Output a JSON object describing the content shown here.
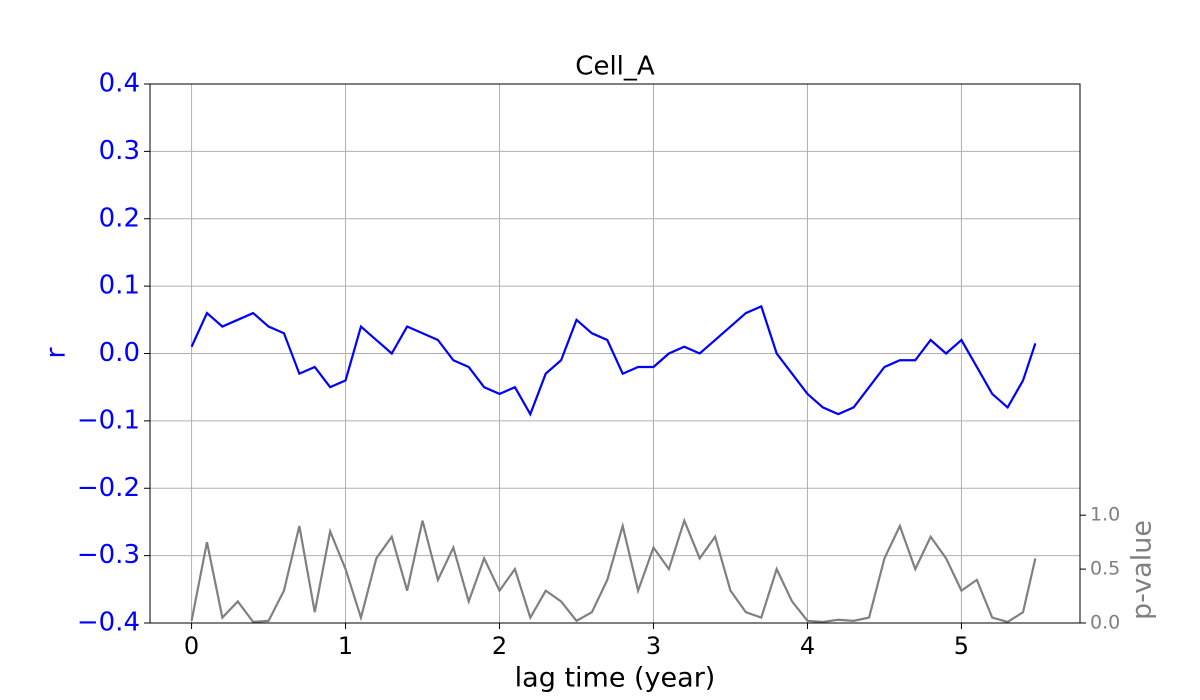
{
  "chart_data": {
    "type": "line",
    "title": "Cell_A",
    "x_label": "lag time (year)",
    "y_label": "r",
    "y2_label": "p-value",
    "x": [
      0,
      0.1,
      0.2,
      0.3,
      0.4,
      0.5,
      0.6,
      0.7,
      0.8,
      0.9,
      1.0,
      1.1,
      1.2,
      1.3,
      1.4,
      1.5,
      1.6,
      1.7,
      1.8,
      1.9,
      2.0,
      2.1,
      2.2,
      2.3,
      2.4,
      2.5,
      2.6,
      2.7,
      2.8,
      2.9,
      3.0,
      3.1,
      3.2,
      3.3,
      3.4,
      3.5,
      3.6,
      3.7,
      3.8,
      3.9,
      4.0,
      4.1,
      4.2,
      4.3,
      4.4,
      4.5,
      4.6,
      4.7,
      4.8,
      4.9,
      5.0,
      5.1,
      5.2,
      5.3,
      5.4,
      5.48
    ],
    "series": [
      {
        "name": "r",
        "color": "#0000ff",
        "axis": "y",
        "values": [
          0.01,
          0.06,
          0.04,
          0.05,
          0.06,
          0.04,
          0.03,
          -0.03,
          -0.02,
          -0.05,
          -0.04,
          0.04,
          0.02,
          0.0,
          0.04,
          0.03,
          0.02,
          -0.01,
          -0.02,
          -0.05,
          -0.06,
          -0.05,
          -0.09,
          -0.03,
          -0.01,
          0.05,
          0.03,
          0.02,
          -0.03,
          -0.02,
          -0.02,
          0.0,
          0.01,
          0.0,
          0.02,
          0.04,
          0.06,
          0.07,
          0.0,
          -0.03,
          -0.06,
          -0.08,
          -0.09,
          -0.08,
          -0.05,
          -0.02,
          -0.01,
          -0.01,
          0.02,
          0.0,
          0.02,
          -0.02,
          -0.06,
          -0.08,
          -0.04,
          0.015
        ]
      },
      {
        "name": "p-value",
        "color": "#808080",
        "axis": "y2",
        "values": [
          0.02,
          0.75,
          0.05,
          0.2,
          0.01,
          0.02,
          0.3,
          0.9,
          0.1,
          0.85,
          0.5,
          0.05,
          0.6,
          0.8,
          0.3,
          0.95,
          0.4,
          0.7,
          0.2,
          0.6,
          0.3,
          0.5,
          0.05,
          0.3,
          0.2,
          0.02,
          0.1,
          0.4,
          0.9,
          0.3,
          0.7,
          0.5,
          0.95,
          0.6,
          0.8,
          0.3,
          0.1,
          0.05,
          0.5,
          0.2,
          0.02,
          0.01,
          0.03,
          0.02,
          0.05,
          0.6,
          0.9,
          0.5,
          0.8,
          0.6,
          0.3,
          0.4,
          0.05,
          0.01,
          0.1,
          0.6
        ]
      }
    ],
    "xlim": [
      -0.27,
      5.77
    ],
    "xticks": [
      0,
      1,
      2,
      3,
      4,
      5
    ],
    "ylim": [
      -0.4,
      0.4
    ],
    "yticks": [
      {
        "value": -0.4,
        "label": "−0.4"
      },
      {
        "value": -0.3,
        "label": "−0.3"
      },
      {
        "value": -0.2,
        "label": "−0.2"
      },
      {
        "value": -0.1,
        "label": "−0.1"
      },
      {
        "value": 0,
        "label": "0.0"
      },
      0.1,
      0.2,
      0.3,
      0.4
    ],
    "y2lim": [
      0,
      5.0
    ],
    "y2ticks": [
      {
        "value": 0,
        "label": "0.0"
      },
      0.5,
      {
        "value": 1,
        "label": "1.0"
      }
    ],
    "grid": true
  }
}
